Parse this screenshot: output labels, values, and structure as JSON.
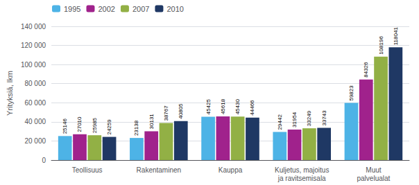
{
  "chart_data": {
    "type": "bar",
    "categories": [
      "Teollisuus",
      "Rakentaminen",
      "Kauppa",
      "Kuljetus, majoitus\nja ravitsemisala",
      "Muut\npalvelualat"
    ],
    "series": [
      {
        "name": "1995",
        "color": "#4DB3E6",
        "values": [
          25146,
          23138,
          45425,
          29442,
          59823
        ]
      },
      {
        "name": "2002",
        "color": "#A0228C",
        "values": [
          27010,
          30131,
          45618,
          31954,
          84326
        ]
      },
      {
        "name": "2007",
        "color": "#92B045",
        "values": [
          25985,
          38767,
          45430,
          33249,
          108196
        ]
      },
      {
        "name": "2010",
        "color": "#1F3864",
        "values": [
          24259,
          40805,
          44466,
          33743,
          118041
        ]
      }
    ],
    "ylabel": "Yrityksiä, lkm",
    "ylim": [
      0,
      140000
    ],
    "yticks": [
      0,
      {
        "value": 20000,
        "label": "20 000"
      },
      {
        "value": 40000,
        "label": "40 000"
      },
      {
        "value": 60000,
        "label": "60 000"
      },
      {
        "value": 80000,
        "label": "80 000"
      },
      {
        "value": 100000,
        "label": "100 000"
      },
      {
        "value": 120000,
        "label": "120 000"
      },
      {
        "value": 140000,
        "label": "140 000"
      }
    ],
    "grid": true,
    "legend": "upper left",
    "data_labels": true
  }
}
